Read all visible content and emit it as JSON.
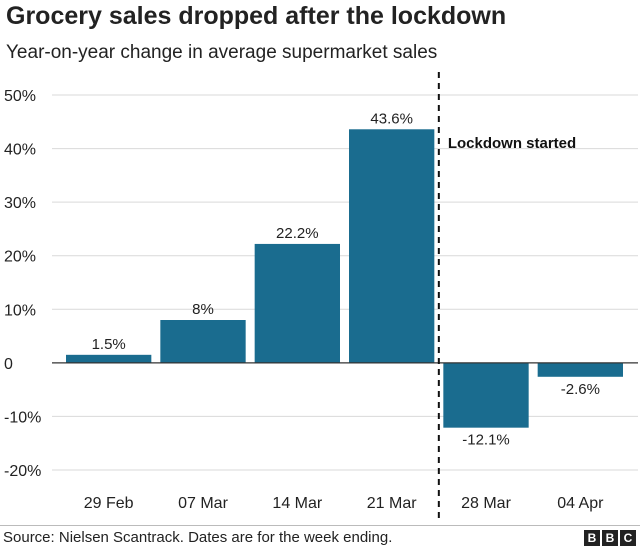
{
  "title": "Grocery sales dropped after the lockdown",
  "subtitle": "Year-on-year change in average supermarket sales",
  "source": "Source: Nielsen Scantrack. Dates are for the week ending.",
  "logo_letters": [
    "B",
    "B",
    "C"
  ],
  "colors": {
    "bar": "#1a6c8f",
    "text": "#222222",
    "grid": "#d9d9d9"
  },
  "chart_data": {
    "type": "bar",
    "categories": [
      "29 Feb",
      "07 Mar",
      "14 Mar",
      "21 Mar",
      "28 Mar",
      "04 Apr"
    ],
    "values": [
      1.5,
      8,
      22.2,
      43.6,
      -12.1,
      -2.6
    ],
    "value_labels": [
      "1.5%",
      "8%",
      "22.2%",
      "43.6%",
      "-12.1%",
      "-2.6%"
    ],
    "yticks": [
      50,
      40,
      30,
      20,
      10,
      0,
      -10,
      -20
    ],
    "ytick_labels": [
      "50%",
      "40%",
      "30%",
      "20%",
      "10%",
      "0",
      "-10%",
      "-20%"
    ],
    "ylim": [
      -20,
      50
    ],
    "grid": true,
    "annotation": {
      "text": "Lockdown started",
      "between": [
        "21 Mar",
        "28 Mar"
      ]
    }
  }
}
